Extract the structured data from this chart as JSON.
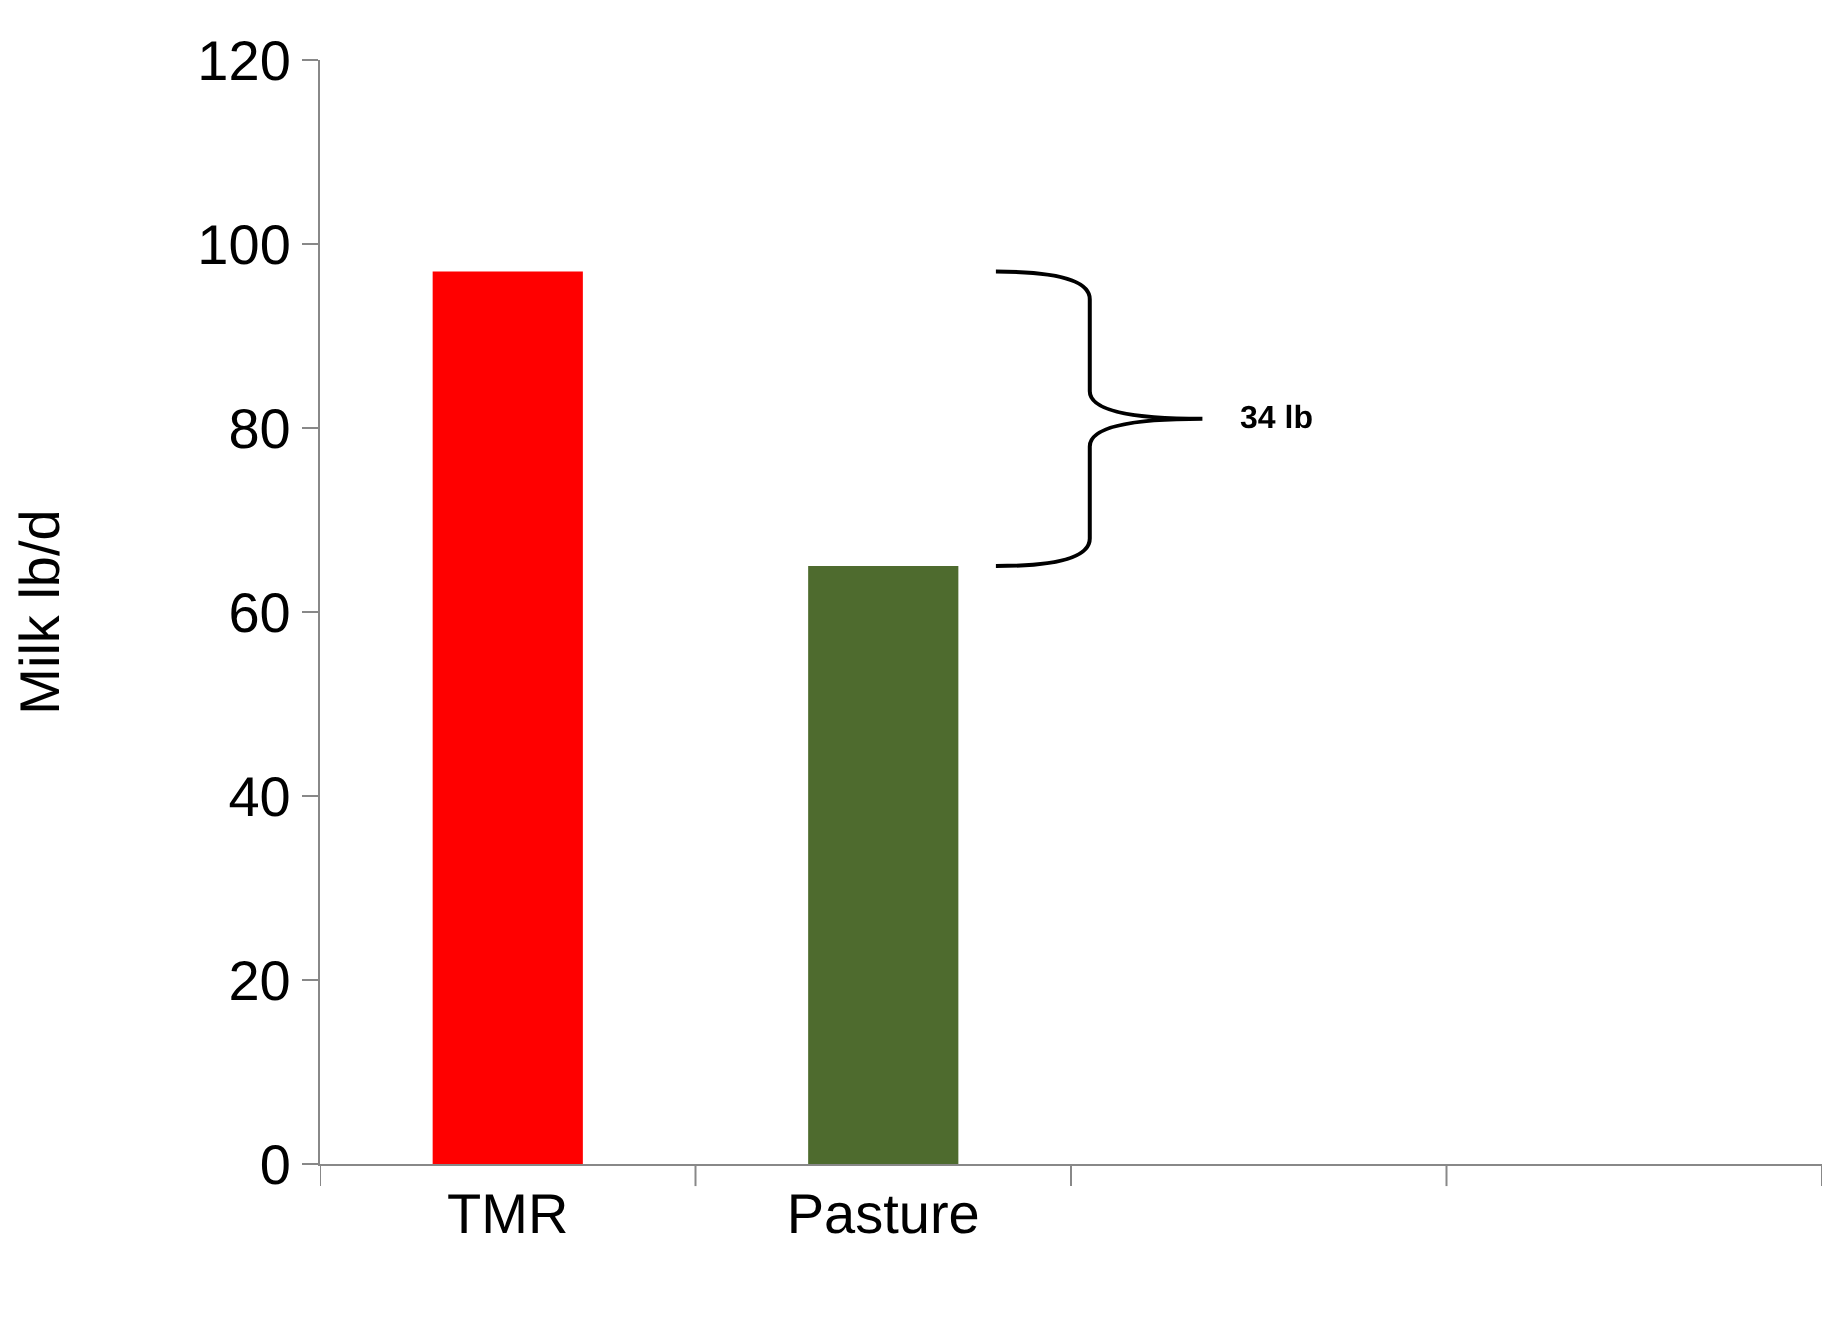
{
  "chart_data": {
    "type": "bar",
    "ylabel": "Milk lb/d",
    "categories": [
      "TMR",
      "Pasture",
      null,
      null
    ],
    "values": [
      97,
      65,
      null,
      null
    ],
    "colors": [
      "#ff0000",
      "#4e6b2e",
      "#ff0000",
      "#ff0000"
    ],
    "ylim": [
      0,
      120
    ],
    "yticks": [
      0,
      20,
      40,
      60,
      80,
      100,
      120
    ],
    "annotations": [
      "34 lb"
    ]
  }
}
